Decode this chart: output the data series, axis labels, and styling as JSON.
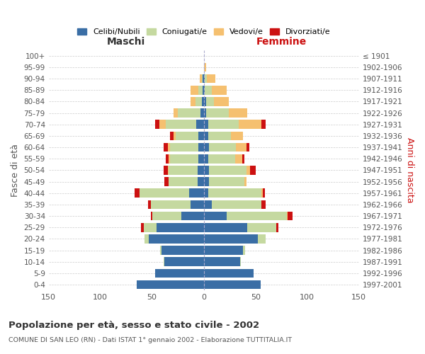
{
  "age_groups": [
    "100+",
    "95-99",
    "90-94",
    "85-89",
    "80-84",
    "75-79",
    "70-74",
    "65-69",
    "60-64",
    "55-59",
    "50-54",
    "45-49",
    "40-44",
    "35-39",
    "30-34",
    "25-29",
    "20-24",
    "15-19",
    "10-14",
    "5-9",
    "0-4"
  ],
  "birth_years": [
    "≤ 1901",
    "1902-1906",
    "1907-1911",
    "1912-1916",
    "1917-1921",
    "1922-1926",
    "1927-1931",
    "1932-1936",
    "1937-1941",
    "1942-1946",
    "1947-1951",
    "1952-1956",
    "1957-1961",
    "1962-1966",
    "1967-1971",
    "1972-1976",
    "1977-1981",
    "1982-1986",
    "1987-1991",
    "1992-1996",
    "1997-2001"
  ],
  "maschi": {
    "celibi": [
      0,
      0,
      1,
      1,
      2,
      3,
      7,
      5,
      5,
      5,
      6,
      6,
      14,
      13,
      22,
      46,
      53,
      41,
      38,
      47,
      65
    ],
    "coniugati": [
      0,
      0,
      1,
      4,
      6,
      22,
      30,
      22,
      28,
      28,
      28,
      28,
      48,
      38,
      28,
      12,
      4,
      1,
      1,
      0,
      0
    ],
    "vedovi": [
      0,
      0,
      2,
      8,
      5,
      4,
      6,
      2,
      2,
      1,
      1,
      0,
      0,
      0,
      0,
      0,
      0,
      0,
      0,
      0,
      0
    ],
    "divorziati": [
      0,
      0,
      0,
      0,
      0,
      0,
      4,
      4,
      4,
      3,
      4,
      4,
      5,
      3,
      1,
      3,
      0,
      0,
      0,
      0,
      0
    ]
  },
  "femmine": {
    "nubili": [
      0,
      0,
      1,
      1,
      2,
      2,
      4,
      4,
      5,
      4,
      5,
      5,
      4,
      8,
      22,
      42,
      52,
      38,
      35,
      48,
      55
    ],
    "coniugate": [
      0,
      0,
      2,
      7,
      8,
      22,
      30,
      22,
      26,
      26,
      36,
      34,
      52,
      48,
      58,
      28,
      8,
      2,
      1,
      0,
      0
    ],
    "vedove": [
      0,
      2,
      8,
      14,
      14,
      18,
      22,
      12,
      10,
      7,
      4,
      2,
      1,
      0,
      1,
      0,
      0,
      0,
      0,
      0,
      0
    ],
    "divorziate": [
      0,
      0,
      0,
      0,
      0,
      0,
      4,
      0,
      3,
      2,
      5,
      0,
      2,
      4,
      5,
      2,
      0,
      0,
      0,
      0,
      0
    ]
  },
  "colors": {
    "celibi_nubili": "#3a6ea5",
    "coniugati": "#c5d9a0",
    "vedovi": "#f5c070",
    "divorziati": "#cc1111"
  },
  "xlim": 150,
  "title": "Popolazione per età, sesso e stato civile - 2002",
  "subtitle": "COMUNE DI SAN LEO (RN) - Dati ISTAT 1° gennaio 2002 - Elaborazione TUTTITALIA.IT",
  "xlabel_left": "Maschi",
  "xlabel_right": "Femmine",
  "ylabel_left": "Fasce di età",
  "ylabel_right": "Anni di nascita",
  "legend_labels": [
    "Celibi/Nubili",
    "Coniugati/e",
    "Vedovi/e",
    "Divorziati/e"
  ],
  "bg_color": "#ffffff",
  "grid_color": "#cccccc"
}
